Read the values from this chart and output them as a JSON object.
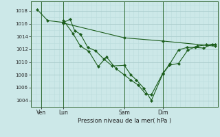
{
  "background_color": "#cce8e8",
  "grid_color_major": "#aacccc",
  "grid_color_minor": "#bbdddd",
  "line_color": "#1a5c1a",
  "marker_color": "#1a5c1a",
  "xlabel": "Pression niveau de la mer( hPa )",
  "ylabel_ticks": [
    1004,
    1006,
    1008,
    1010,
    1012,
    1014,
    1016,
    1018
  ],
  "ylim": [
    1003.0,
    1019.5
  ],
  "xlim": [
    0.0,
    1.0
  ],
  "xtick_labels": [
    "Ven",
    "Lun",
    "Sam",
    "Dim"
  ],
  "xtick_positions": [
    0.055,
    0.175,
    0.5,
    0.705
  ],
  "vline_positions": [
    0.055,
    0.175,
    0.5,
    0.705
  ],
  "series": [
    {
      "x": [
        0.035,
        0.09,
        0.175,
        0.21,
        0.235,
        0.265,
        0.305,
        0.345,
        0.39,
        0.435,
        0.5,
        0.535,
        0.565,
        0.605,
        0.645,
        0.705,
        0.74,
        0.79,
        0.84,
        0.89,
        0.94,
        0.985
      ],
      "y": [
        1018.2,
        1016.5,
        1016.2,
        1016.7,
        1014.9,
        1014.4,
        1012.3,
        1011.8,
        1010.5,
        1009.4,
        1009.5,
        1008.0,
        1007.2,
        1005.9,
        1004.0,
        1008.1,
        1009.5,
        1009.8,
        1011.9,
        1012.5,
        1012.7,
        1012.8
      ]
    },
    {
      "x": [
        0.175,
        0.225,
        0.265,
        0.31,
        0.36,
        0.405,
        0.455,
        0.5,
        0.535,
        0.575,
        0.615,
        0.645,
        0.705,
        0.745,
        0.79,
        0.835,
        0.88,
        0.925,
        0.97
      ],
      "y": [
        1016.5,
        1014.5,
        1012.5,
        1011.7,
        1009.3,
        1010.8,
        1009.0,
        1008.0,
        1007.2,
        1006.4,
        1005.0,
        1004.9,
        1008.2,
        1009.8,
        1011.9,
        1012.3,
        1012.3,
        1012.2,
        1012.8
      ]
    },
    {
      "x": [
        0.175,
        0.5,
        0.705,
        0.985
      ],
      "y": [
        1016.1,
        1013.8,
        1013.3,
        1012.5
      ]
    }
  ]
}
